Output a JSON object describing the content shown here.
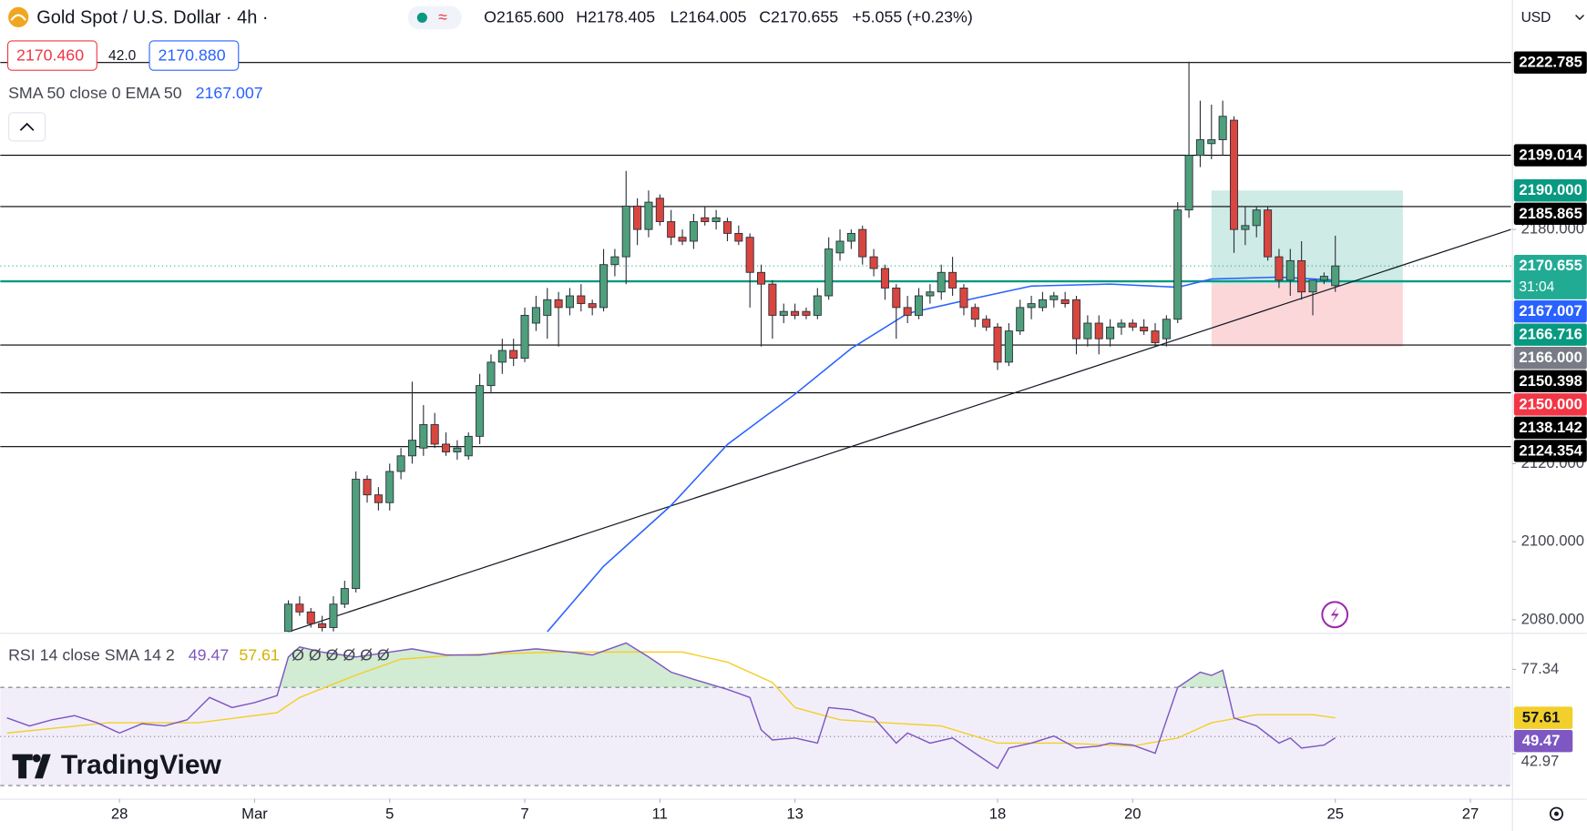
{
  "chart_data": {
    "type": "candlestick",
    "title": "Gold Spot / U.S. Dollar · 4h ·",
    "legend_ohlc": [
      "O2165.600",
      "H2178.405",
      "L2164.005",
      "C2170.655",
      "+5.055 (+0.23%)"
    ],
    "up_color": "#4f9f7c",
    "down_color": "#d9463f",
    "x": [
      0,
      1,
      2,
      3,
      4,
      5,
      6,
      7,
      8,
      9,
      10,
      11,
      12,
      13,
      14,
      15,
      16,
      17,
      18,
      19,
      20,
      21,
      22,
      23,
      24,
      25,
      26,
      27,
      28,
      29,
      30,
      31,
      32,
      33,
      34,
      35,
      36,
      37,
      38,
      39,
      40,
      41,
      42,
      43,
      44,
      45,
      46,
      47,
      48,
      49,
      50,
      51,
      52,
      53,
      54,
      55,
      56,
      57,
      58,
      59,
      60,
      61,
      62,
      63,
      64,
      65,
      66,
      67,
      68,
      69,
      70,
      71,
      72,
      73,
      74,
      75,
      76,
      77,
      78,
      79,
      80,
      81,
      82,
      83,
      84,
      85,
      86,
      87,
      88,
      89,
      90,
      91,
      92,
      93
    ],
    "open": [
      2077,
      2084,
      2082,
      2079,
      2078,
      2084,
      2088,
      2116,
      2112,
      2110,
      2118,
      2122,
      2124,
      2130,
      2125,
      2123,
      2122,
      2127,
      2140,
      2146,
      2149,
      2147,
      2156,
      2158,
      2162,
      2160,
      2163,
      2161,
      2160,
      2171,
      2173,
      2186,
      2180,
      2188,
      2182,
      2178,
      2177,
      2183,
      2182,
      2182,
      2179,
      2178,
      2169,
      2166,
      2158,
      2159,
      2159,
      2158,
      2163,
      2174,
      2177,
      2180,
      2173,
      2170,
      2165,
      2160,
      2158,
      2163,
      2164,
      2169,
      2165,
      2160,
      2157,
      2155,
      2146,
      2154,
      2160,
      2160,
      2162,
      2162,
      2162,
      2152,
      2156,
      2152,
      2155,
      2156,
      2155,
      2154,
      2152,
      2157,
      2185,
      2199,
      2202,
      2203,
      2208,
      2180,
      2181,
      2185,
      2173,
      2167,
      2172,
      2164,
      2167,
      2165.6
    ],
    "high": [
      2085,
      2086,
      2083,
      2081,
      2086,
      2090,
      2118,
      2117,
      2114,
      2120,
      2124,
      2141,
      2135,
      2133,
      2128,
      2126,
      2128,
      2143,
      2148,
      2152,
      2152,
      2160,
      2163,
      2165,
      2164,
      2165,
      2166,
      2162,
      2175,
      2175,
      2195,
      2188,
      2190,
      2189,
      2185,
      2180,
      2184,
      2186,
      2185,
      2183,
      2181,
      2179,
      2171,
      2167,
      2161,
      2161,
      2160,
      2165,
      2178,
      2180,
      2180,
      2181,
      2175,
      2171,
      2166,
      2163,
      2165,
      2166,
      2171,
      2173,
      2166,
      2161,
      2158,
      2156,
      2156,
      2162,
      2163,
      2164,
      2164,
      2164,
      2163,
      2158,
      2158,
      2157,
      2157,
      2157,
      2157,
      2156,
      2158,
      2187,
      2223,
      2213,
      2212,
      2213,
      2209,
      2186,
      2186,
      2186,
      2175,
      2175,
      2177,
      2167,
      2169,
      2178.405
    ],
    "low": [
      2074,
      2081,
      2078,
      2077,
      2077,
      2083,
      2087,
      2110,
      2108,
      2108,
      2116,
      2120,
      2122,
      2124,
      2122,
      2121,
      2121,
      2125,
      2138,
      2143,
      2145,
      2146,
      2154,
      2152,
      2150,
      2158,
      2159,
      2158,
      2159,
      2168,
      2166,
      2176,
      2178,
      2181,
      2176,
      2176,
      2175,
      2181,
      2180,
      2177,
      2176,
      2160,
      2150,
      2152,
      2156,
      2157,
      2157,
      2157,
      2162,
      2172,
      2175,
      2171,
      2168,
      2162,
      2152,
      2156,
      2157,
      2161,
      2162,
      2163,
      2158,
      2155,
      2154,
      2144,
      2145,
      2153,
      2157,
      2159,
      2160,
      2160,
      2148,
      2150,
      2148,
      2150,
      2153,
      2154,
      2153,
      2150,
      2150,
      2156,
      2183,
      2196,
      2198,
      2199,
      2174,
      2176,
      2178,
      2172,
      2165,
      2163,
      2162,
      2158,
      2166,
      2164.005
    ],
    "close": [
      2084,
      2082,
      2079,
      2078,
      2084,
      2088,
      2116,
      2112,
      2110,
      2118,
      2122,
      2126,
      2130,
      2125,
      2123,
      2124,
      2127,
      2140,
      2146,
      2149,
      2147,
      2158,
      2160,
      2162,
      2160,
      2163,
      2161,
      2160,
      2171,
      2173,
      2186,
      2180,
      2187,
      2182,
      2178,
      2177,
      2182,
      2182,
      2183,
      2179,
      2177,
      2169,
      2166,
      2158,
      2159,
      2158,
      2158,
      2163,
      2175,
      2177,
      2179,
      2173,
      2170,
      2165,
      2160,
      2158,
      2163,
      2164,
      2169,
      2165,
      2160,
      2157,
      2155,
      2146,
      2154,
      2160,
      2161,
      2162,
      2163,
      2161,
      2152,
      2156,
      2152,
      2155,
      2156,
      2155,
      2154,
      2151,
      2157,
      2185,
      2199,
      2203,
      2203,
      2209,
      2180,
      2181,
      2185,
      2173,
      2167,
      2172,
      2164,
      2167,
      2168,
      2170.655
    ],
    "xlim": [
      -25.6,
      108.6
    ],
    "ylim": [
      2076.9,
      2238.8
    ],
    "xticks": [
      {
        "value": -15,
        "label": "28"
      },
      {
        "value": -3,
        "label": "Mar"
      },
      {
        "value": 9,
        "label": "5"
      },
      {
        "value": 21,
        "label": "7"
      },
      {
        "value": 33,
        "label": "11"
      },
      {
        "value": 45,
        "label": "13"
      },
      {
        "value": 63,
        "label": "18"
      },
      {
        "value": 75,
        "label": "20"
      },
      {
        "value": 93,
        "label": "25"
      },
      {
        "value": 105,
        "label": "27"
      }
    ],
    "yticks": [
      {
        "value": 2180,
        "label": "2180.000"
      },
      {
        "value": 2120,
        "label": "2120.000"
      },
      {
        "value": 2100,
        "label": "2100.000"
      },
      {
        "value": 2080,
        "label": "2080.000"
      }
    ],
    "hlines": [
      2222.785,
      2199.014,
      2185.865,
      2150.398,
      2138.142,
      2124.354
    ],
    "hline_color": "#000000",
    "sma_line": {
      "value": 2166.716,
      "color": "#089981"
    },
    "last_price_color": "#22ab94",
    "countdown": "31:04",
    "ema": {
      "name": "SMA 50 close 0 EMA 50",
      "color": "#2962ff",
      "x": [
        23,
        28,
        34,
        39,
        45,
        50,
        55,
        61,
        66,
        73,
        79,
        82,
        88,
        93
      ],
      "values": [
        2076.9,
        2093.7,
        2109.3,
        2124.9,
        2137.8,
        2149.5,
        2158.5,
        2162.4,
        2165.5,
        2166.0,
        2165.2,
        2167.3,
        2167.8,
        2167.007
      ]
    },
    "trendline": {
      "x": [
        0,
        108.6
      ],
      "values": [
        2076.9,
        2180
      ],
      "color": "#131722"
    },
    "position": {
      "x": [
        82,
        99
      ],
      "target": {
        "value": 2190,
        "label": "2190.000",
        "color": "#089981"
      },
      "entry": {
        "value": 2166,
        "label": "2166.000",
        "color": "#787b86"
      },
      "stop": {
        "value": 2150,
        "label": "2150.000",
        "color": "#f23645"
      }
    },
    "rsi": {
      "name": "RSI 14 close SMA 14 2",
      "color": "#7e57c2",
      "x": [
        -25,
        -23,
        -21,
        -19,
        -17,
        -15,
        -13,
        -11,
        -9,
        -7,
        -5,
        -3,
        -1,
        0,
        1,
        3,
        6,
        9,
        11,
        14,
        17,
        19,
        22,
        25,
        27,
        30,
        32,
        34,
        36,
        39,
        41,
        42,
        43,
        45,
        47,
        48,
        50,
        52,
        54,
        55,
        57,
        59,
        61,
        63,
        64,
        66,
        68,
        70,
        72,
        73,
        75,
        77,
        79,
        81,
        82,
        83,
        84,
        86,
        88,
        89,
        90,
        92,
        93
      ],
      "values": [
        57.6,
        54.3,
        56.8,
        58.5,
        55.6,
        51.4,
        55.2,
        54.3,
        56.8,
        65.9,
        61.8,
        63.8,
        66.7,
        82.4,
        86.5,
        84.4,
        82.4,
        84.4,
        85.7,
        83.2,
        83.2,
        84.4,
        85.7,
        84.4,
        83.2,
        88.1,
        82.4,
        76.2,
        73.3,
        69.2,
        65.9,
        52.7,
        48.6,
        49.4,
        47.3,
        61.8,
        60.9,
        57.6,
        47.3,
        51.4,
        47.3,
        49.4,
        43.2,
        37.0,
        45.3,
        47.3,
        50.2,
        45.3,
        46.1,
        47.3,
        46.5,
        43.2,
        70.0,
        76.2,
        74.9,
        77.0,
        57.6,
        54.3,
        47.3,
        49.4,
        45.3,
        46.5,
        49.47
      ]
    },
    "rsi_sma": {
      "color": "#f2cf2a",
      "x": [
        -25,
        -16,
        -8,
        -1,
        1,
        6,
        10,
        15,
        24,
        30,
        35,
        39,
        43,
        45,
        49,
        53,
        58,
        63,
        69,
        75,
        79,
        82,
        86,
        91,
        93
      ],
      "values": [
        51.4,
        55.6,
        55.6,
        59.7,
        65.9,
        75.0,
        81.5,
        83.2,
        84.4,
        84.4,
        84.4,
        80.3,
        72.0,
        61.8,
        56.8,
        55.6,
        54.3,
        47.3,
        47.3,
        46.1,
        49.4,
        55.6,
        58.9,
        58.9,
        57.61
      ]
    },
    "rsi_na": "Ø Ø Ø Ø Ø Ø",
    "rsi_ylim": [
      28.8,
      91.4
    ],
    "rsi_ticks": [
      77.34,
      42.97
    ],
    "rsi_levels": [
      70,
      50,
      30
    ],
    "rsi_band_color": "#7e57c2",
    "rsi_over_color": "#4caf50"
  },
  "ui": {
    "sell": "2170.460",
    "spread": "42.0",
    "buy": "2170.880",
    "currency": "USD",
    "logo": "TradingView"
  }
}
